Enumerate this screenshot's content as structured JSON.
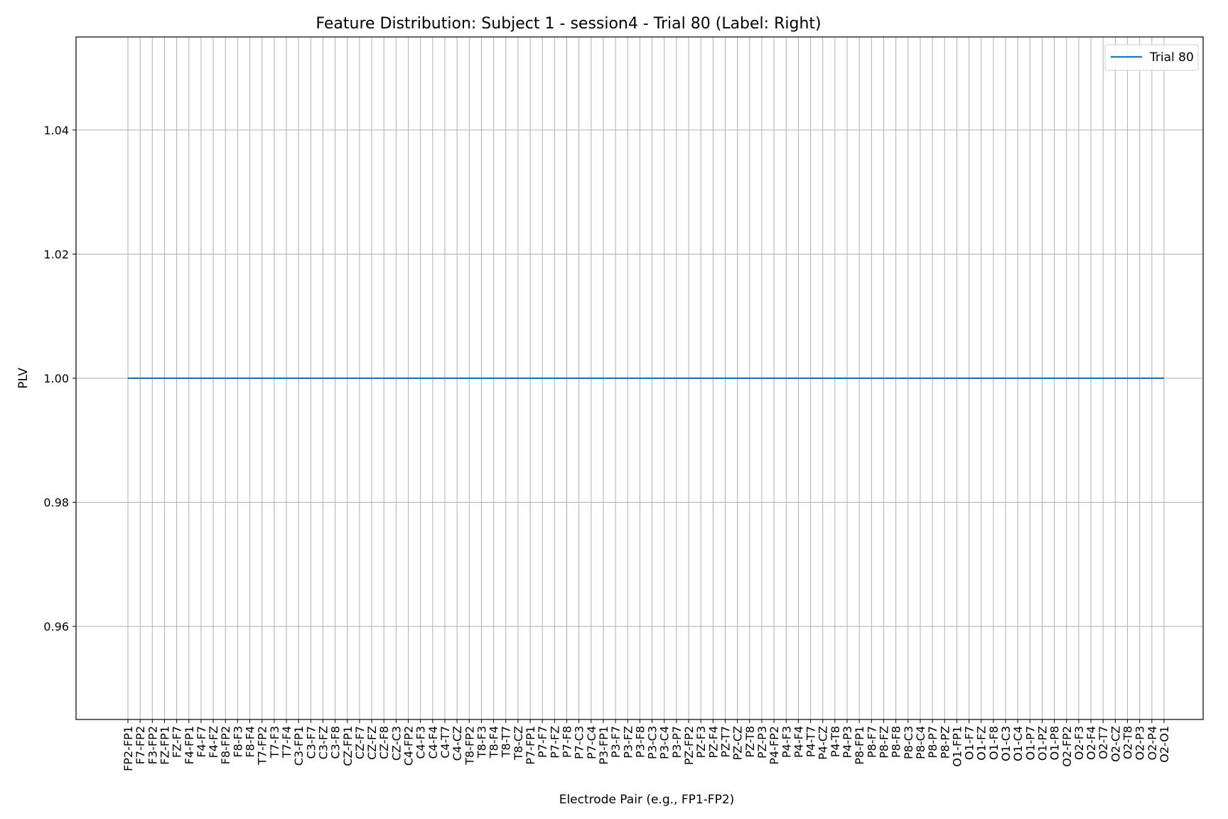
{
  "chart_data": {
    "type": "line",
    "title": "Feature Distribution: Subject 1 - session4 - Trial 80 (Label: Right)",
    "xlabel": "Electrode Pair (e.g., FP1-FP2)",
    "ylabel": "PLV",
    "ylim": [
      0.945,
      1.055
    ],
    "yticks": [
      0.96,
      0.98,
      1.0,
      1.02,
      1.04
    ],
    "ytick_labels": [
      "0.96",
      "0.98",
      "1.00",
      "1.02",
      "1.04"
    ],
    "grid": true,
    "legend_position": "top-right",
    "categories": [
      "FP2-FP1",
      "F7-FP2",
      "F3-FP2",
      "FZ-FP1",
      "FZ-F7",
      "F4-FP1",
      "F4-F7",
      "F4-FZ",
      "F8-FP2",
      "F8-F3",
      "F8-F4",
      "T7-FP2",
      "T7-F3",
      "T7-F4",
      "C3-FP1",
      "C3-F7",
      "C3-FZ",
      "C3-F8",
      "CZ-FP1",
      "CZ-F7",
      "CZ-FZ",
      "CZ-F8",
      "CZ-C3",
      "C4-FP2",
      "C4-F3",
      "C4-F4",
      "C4-T7",
      "C4-CZ",
      "T8-FP2",
      "T8-F3",
      "T8-F4",
      "T8-T7",
      "T8-CZ",
      "P7-FP1",
      "P7-F7",
      "P7-FZ",
      "P7-F8",
      "P7-C3",
      "P7-C4",
      "P3-FP1",
      "P3-F7",
      "P3-FZ",
      "P3-F8",
      "P3-C3",
      "P3-C4",
      "P3-P7",
      "PZ-FP2",
      "PZ-F3",
      "PZ-F4",
      "PZ-T7",
      "PZ-CZ",
      "PZ-T8",
      "PZ-P3",
      "P4-FP2",
      "P4-F3",
      "P4-F4",
      "P4-T7",
      "P4-CZ",
      "P4-T8",
      "P4-P3",
      "P8-FP1",
      "P8-F7",
      "P8-FZ",
      "P8-F8",
      "P8-C3",
      "P8-C4",
      "P8-P7",
      "P8-PZ",
      "O1-FP1",
      "O1-F7",
      "O1-FZ",
      "O1-F8",
      "O1-C3",
      "O1-C4",
      "O1-P7",
      "O1-PZ",
      "O1-P8",
      "O2-FP2",
      "O2-F3",
      "O2-F4",
      "O2-T7",
      "O2-CZ",
      "O2-T8",
      "O2-P3",
      "O2-P4",
      "O2-O1"
    ],
    "series": [
      {
        "name": "Trial 80",
        "color": "#1f77b4",
        "values": [
          1.0,
          1.0,
          1.0,
          1.0,
          1.0,
          1.0,
          1.0,
          1.0,
          1.0,
          1.0,
          1.0,
          1.0,
          1.0,
          1.0,
          1.0,
          1.0,
          1.0,
          1.0,
          1.0,
          1.0,
          1.0,
          1.0,
          1.0,
          1.0,
          1.0,
          1.0,
          1.0,
          1.0,
          1.0,
          1.0,
          1.0,
          1.0,
          1.0,
          1.0,
          1.0,
          1.0,
          1.0,
          1.0,
          1.0,
          1.0,
          1.0,
          1.0,
          1.0,
          1.0,
          1.0,
          1.0,
          1.0,
          1.0,
          1.0,
          1.0,
          1.0,
          1.0,
          1.0,
          1.0,
          1.0,
          1.0,
          1.0,
          1.0,
          1.0,
          1.0,
          1.0,
          1.0,
          1.0,
          1.0,
          1.0,
          1.0,
          1.0,
          1.0,
          1.0,
          1.0,
          1.0,
          1.0,
          1.0,
          1.0,
          1.0,
          1.0,
          1.0,
          1.0,
          1.0,
          1.0,
          1.0,
          1.0,
          1.0,
          1.0,
          1.0,
          1.0
        ]
      }
    ],
    "colors": {
      "grid": "#b0b0b0",
      "axes": "#000000"
    }
  }
}
